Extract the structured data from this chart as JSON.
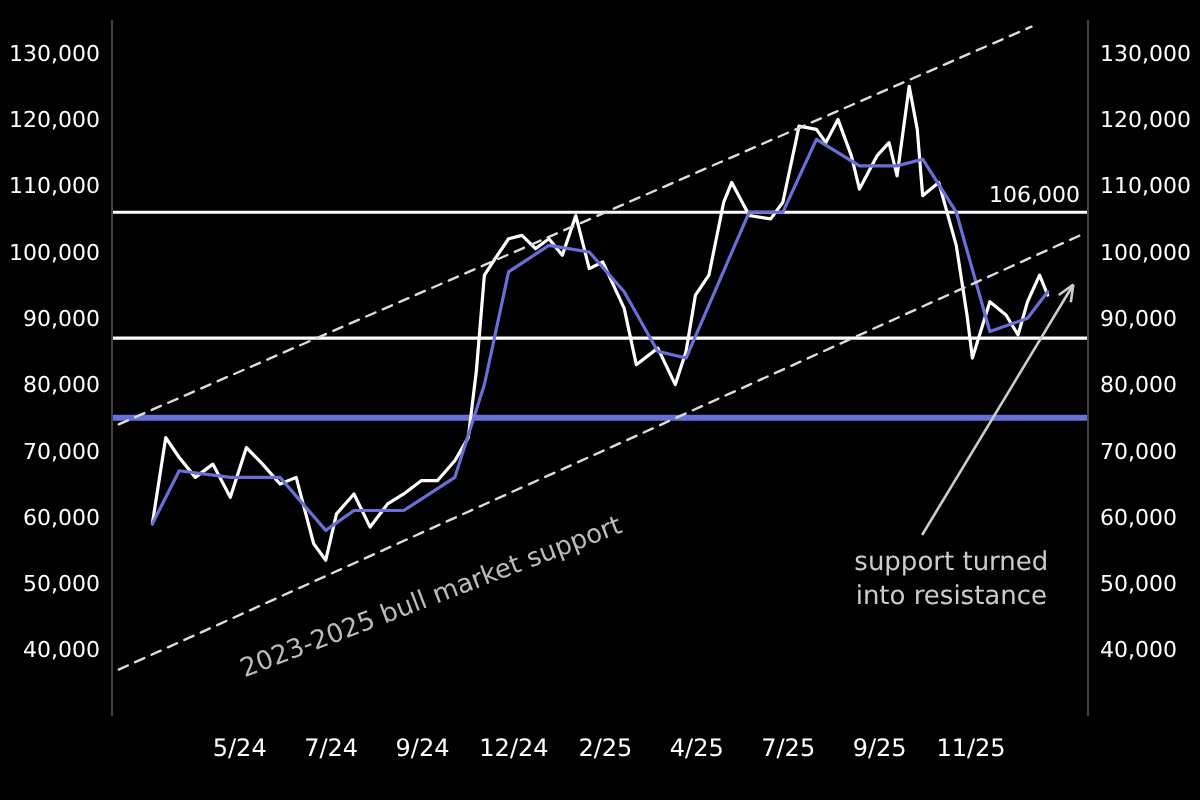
{
  "chart_data": {
    "type": "line",
    "x": [
      "2024-03-11",
      "2024-03-21",
      "2024-03-31",
      "2024-04-12",
      "2024-04-25",
      "2024-05-08",
      "2024-05-20",
      "2024-06-01",
      "2024-06-14",
      "2024-06-26",
      "2024-07-09",
      "2024-07-18",
      "2024-07-26",
      "2024-08-08",
      "2024-08-20",
      "2024-09-02",
      "2024-09-14",
      "2024-09-27",
      "2024-10-09",
      "2024-10-22",
      "2024-11-01",
      "2024-11-07",
      "2024-11-13",
      "2024-11-21",
      "2024-12-01",
      "2024-12-11",
      "2024-12-21",
      "2024-12-31",
      "2025-01-10",
      "2025-01-20",
      "2025-01-30",
      "2025-02-09",
      "2025-02-25",
      "2025-03-06",
      "2025-03-22",
      "2025-04-04",
      "2025-04-12",
      "2025-04-19",
      "2025-04-29",
      "2025-05-10",
      "2025-05-16",
      "2025-05-29",
      "2025-06-14",
      "2025-06-23",
      "2025-07-03",
      "2025-07-05",
      "2025-07-18",
      "2025-07-25",
      "2025-08-03",
      "2025-08-13",
      "2025-08-19",
      "2025-09-01",
      "2025-09-10",
      "2025-09-16",
      "2025-09-25",
      "2025-10-01",
      "2025-10-05",
      "2025-10-17",
      "2025-10-30",
      "2025-11-07",
      "2025-11-11",
      "2025-11-24",
      "2025-12-06",
      "2025-12-15",
      "2025-12-22",
      "2025-12-31",
      "2026-01-06"
    ],
    "series": [
      {
        "color": "#ffffff",
        "values": [
          59000,
          72000,
          69000,
          66000,
          68000,
          63000,
          70500,
          68000,
          65000,
          66000,
          56000,
          53500,
          60500,
          63500,
          58500,
          62000,
          63500,
          65500,
          65500,
          68500,
          72000,
          82000,
          96500,
          99000,
          102000,
          102500,
          100500,
          102000,
          99500,
          105500,
          97500,
          98500,
          91500,
          83000,
          85500,
          80000,
          85000,
          93500,
          96500,
          107500,
          110500,
          105500,
          105000,
          107500,
          117000,
          119000,
          118500,
          116500,
          120000,
          114500,
          109500,
          114500,
          116500,
          111500,
          125000,
          118500,
          108500,
          110500,
          101000,
          90500,
          84000,
          92500,
          90500,
          87500,
          92500,
          96500,
          93500
        ]
      },
      {
        "color": "#6a6fd8",
        "x": [
          "2024-03-11",
          "2024-03-31",
          "2024-05-08",
          "2024-06-14",
          "2024-07-18",
          "2024-08-08",
          "2024-09-14",
          "2024-10-22",
          "2024-11-13",
          "2024-12-01",
          "2024-12-31",
          "2025-01-30",
          "2025-02-25",
          "2025-03-22",
          "2025-04-12",
          "2025-04-29",
          "2025-05-29",
          "2025-06-23",
          "2025-07-18",
          "2025-08-19",
          "2025-09-16",
          "2025-10-05",
          "2025-10-30",
          "2025-11-24",
          "2025-12-22",
          "2026-01-06"
        ],
        "values": [
          59000,
          67000,
          66000,
          66000,
          58000,
          61000,
          61000,
          66000,
          80000,
          97000,
          101000,
          100000,
          94000,
          85000,
          84000,
          92000,
          106000,
          106000,
          117000,
          113000,
          113000,
          114000,
          106000,
          88000,
          90000,
          94000
        ]
      },
      {
        "color": "#dddddd",
        "line_style": "dashed",
        "x": [
          "2024-02-15",
          "2025-12-25"
        ],
        "values": [
          74000,
          134000
        ]
      },
      {
        "color": "#dddddd",
        "line_style": "dashed",
        "x": [
          "2024-02-15",
          "2026-01-30"
        ],
        "values": [
          37000,
          102500
        ]
      }
    ],
    "xlim": [
      "2024-02-10",
      "2026-02-05"
    ],
    "xticks": [
      {
        "value": "2024-05-15",
        "label": "5/24"
      },
      {
        "value": "2024-07-22",
        "label": "7/24"
      },
      {
        "value": "2024-09-28",
        "label": "9/24"
      },
      {
        "value": "2024-12-05",
        "label": "12/24"
      },
      {
        "value": "2025-02-11",
        "label": "2/25"
      },
      {
        "value": "2025-04-20",
        "label": "4/25"
      },
      {
        "value": "2025-06-27",
        "label": "7/25"
      },
      {
        "value": "2025-09-03",
        "label": "9/25"
      },
      {
        "value": "2025-11-10",
        "label": "11/25"
      }
    ],
    "ylim": [
      30000,
      135000
    ],
    "yticks": [
      {
        "value": 40000,
        "label": "40,000"
      },
      {
        "value": 50000,
        "label": "50,000"
      },
      {
        "value": 60000,
        "label": "60,000"
      },
      {
        "value": 70000,
        "label": "70,000"
      },
      {
        "value": 80000,
        "label": "80,000"
      },
      {
        "value": 90000,
        "label": "90,000"
      },
      {
        "value": 100000,
        "label": "100,000"
      },
      {
        "value": 110000,
        "label": "110,000"
      },
      {
        "value": 120000,
        "label": "120,000"
      },
      {
        "value": 130000,
        "label": "130,000"
      }
    ],
    "y2lim": [
      30000,
      135000
    ],
    "y2ticks": [
      {
        "value": 40000,
        "label": "40,000"
      },
      {
        "value": 50000,
        "label": "50,000"
      },
      {
        "value": 60000,
        "label": "60,000"
      },
      {
        "value": 70000,
        "label": "70,000"
      },
      {
        "value": 80000,
        "label": "80,000"
      },
      {
        "value": 90000,
        "label": "90,000"
      },
      {
        "value": 100000,
        "label": "100,000"
      },
      {
        "value": 110000,
        "label": "110,000"
      },
      {
        "value": 120000,
        "label": "120,000"
      },
      {
        "value": 130000,
        "label": "130,000"
      }
    ],
    "ref_lines": [
      {
        "axis": "y",
        "value": 106000,
        "label": "106,000",
        "color": "#ffffff"
      },
      {
        "axis": "y",
        "value": 87000,
        "label": null,
        "color": "#ffffff"
      },
      {
        "axis": "y",
        "value": 75000,
        "label": null,
        "color": "#6a6fd8"
      }
    ],
    "annotations": [
      "2023-2025 bull market support",
      "support turned into resistance"
    ]
  }
}
